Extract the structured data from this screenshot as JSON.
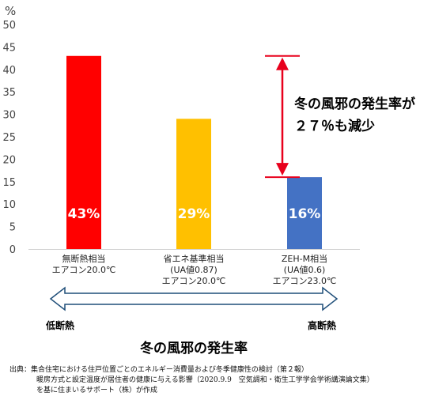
{
  "chart_data": {
    "type": "bar",
    "unit_label": "%",
    "ylim": [
      0,
      50
    ],
    "yticks": [
      0,
      5,
      10,
      15,
      20,
      25,
      30,
      35,
      40,
      45,
      50
    ],
    "categories": [
      [
        "無断熱相当",
        "エアコン20.0℃"
      ],
      [
        "省エネ基準相当",
        "(UA値0.87)",
        "エアコン20.0℃"
      ],
      [
        "ZEH-M相当",
        "(UA値0.6)",
        "エアコン23.0℃"
      ]
    ],
    "values": [
      43,
      29,
      16
    ],
    "data_labels": [
      "43%",
      "29%",
      "16%"
    ],
    "colors": [
      "#ff0000",
      "#ffc000",
      "#4472c4"
    ],
    "grid": false,
    "annotation": {
      "lines": [
        "冬の風邪の発生率が",
        "２７％も減少"
      ],
      "from": 43,
      "to": 16,
      "color": "#e8001c"
    },
    "insulation_axis": {
      "left_label": "低断熱",
      "right_label": "高断熱",
      "color": "#1f4e79"
    },
    "bottom_title": "冬の風邪の発生率"
  },
  "source": {
    "lines": [
      "出典：集合住宅における住戸位置ごとのエネルギー消費量および冬季健康性の検討（第２報）",
      "暖房方式と設定温度が居住者の健康に与える影響（2020.9.9　空気調和・衛生工学学会学術講演論文集）",
      "を基に住まいるサポート（株）が作成"
    ]
  }
}
